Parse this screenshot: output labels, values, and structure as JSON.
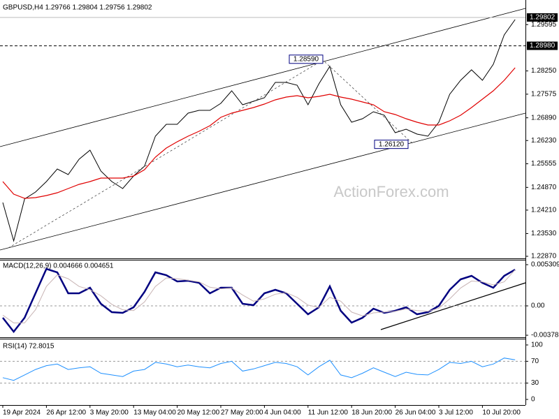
{
  "chart_data": [
    {
      "type": "line",
      "title": "GBPUSD,H4 1.29766 1.29804 1.29756 1.29802",
      "watermark": "ActionForex.com",
      "categories": [
        "19 Apr 2024",
        null,
        null,
        null,
        "26 Apr 12:00",
        null,
        null,
        null,
        "3 May 20:00",
        null,
        null,
        null,
        "13 May 04:00",
        null,
        null,
        null,
        "20 May 12:00",
        null,
        null,
        null,
        "27 May 20:00",
        null,
        null,
        null,
        "4 Jun 04:00",
        null,
        null,
        null,
        "11 Jun 12:00",
        null,
        null,
        null,
        "18 Jun 20:00",
        null,
        null,
        null,
        "26 Jun 04:00",
        null,
        null,
        null,
        "3 Jul 12:00",
        null,
        null,
        null,
        "10 Jul 20:00",
        null,
        null,
        null
      ],
      "ylim": [
        1.22809,
        1.30309
      ],
      "yticks": [
        1.29595,
        {
          "value": 1.2825,
          "label": "1.28250"
        },
        1.27575,
        {
          "value": 1.2689,
          "label": "1.26890"
        },
        {
          "value": 1.2623,
          "label": "1.26230"
        },
        1.25555,
        {
          "value": 1.2487,
          "label": "1.24870"
        },
        {
          "value": 1.2421,
          "label": "1.24210"
        },
        {
          "value": 1.2353,
          "label": "1.23530"
        },
        {
          "value": 1.2287,
          "label": "1.22870"
        }
      ],
      "hlines": [
        {
          "value": 1.2898,
          "label": "1.28980"
        }
      ],
      "last_price": 1.29802,
      "annotations": [
        {
          "value": 1.2859,
          "label": "1.28590"
        },
        {
          "value": 1.2612,
          "label": "1.26120"
        }
      ],
      "series": [
        {
          "color": "#000000",
          "values": [
            1.24431,
            1.23316,
            1.24532,
            1.24735,
            1.25039,
            1.25404,
            1.25241,
            1.25687,
            1.25951,
            1.25343,
            1.25039,
            1.24836,
            1.25201,
            1.25485,
            1.26356,
            1.26701,
            1.26701,
            1.27025,
            1.27106,
            1.27106,
            1.27309,
            1.27674,
            1.27268,
            1.2737,
            1.27471,
            1.27917,
            1.27917,
            1.27836,
            1.27268,
            1.27877,
            1.28383,
            1.27268,
            1.26762,
            1.26863,
            1.27066,
            1.26964,
            1.26458,
            1.26559,
            1.26417,
            1.26356,
            1.26762,
            1.27573,
            1.27978,
            1.28282,
            1.27978,
            1.28444,
            1.29295,
            1.29741
          ]
        },
        {
          "color": "#e00000",
          "values": [
            1.25039,
            1.24674,
            1.24552,
            1.24573,
            1.24633,
            1.24714,
            1.24836,
            1.24958,
            1.25039,
            1.2514,
            1.2514,
            1.2514,
            1.25201,
            1.25383,
            1.25748,
            1.26012,
            1.26194,
            1.26356,
            1.26498,
            1.2666,
            1.26904,
            1.27025,
            1.27106,
            1.27187,
            1.27289,
            1.2741,
            1.27491,
            1.27532,
            1.27471,
            1.27512,
            1.27573,
            1.27491,
            1.27431,
            1.2735,
            1.27268,
            1.27066,
            1.26985,
            1.26863,
            1.26762,
            1.26681,
            1.26681,
            1.26802,
            1.26964,
            1.27187,
            1.27431,
            1.27674,
            1.27978,
            1.28343
          ]
        }
      ]
    },
    {
      "type": "line",
      "title": "MACD(12,26,9) 0.004666 0.004651",
      "ylim": [
        -0.00405,
        0.00594
      ],
      "yticks": [
        0.005309,
        {
          "value": 0,
          "label": "0.00"
        },
        -0.003785
      ],
      "levels": [
        0
      ],
      "series": [
        {
          "color": "#000080",
          "values": [
            -0.00153,
            -0.00333,
            -0.00153,
            0.00162,
            0.00477,
            0.00432,
            0.00162,
            0.00162,
            0.00234,
            0.00027,
            -0.00081,
            -0.0009,
            -0.00018,
            0.0018,
            0.00432,
            0.00396,
            0.00315,
            0.00324,
            0.00297,
            0.00162,
            0.00234,
            0.00234,
            0.00027,
            9e-05,
            0.00162,
            0.00207,
            0.00162,
            0.00027,
            -0.00108,
            -0.00018,
            0.00252,
            -0.00063,
            -0.00216,
            -0.00153,
            -0.00036,
            -0.0009,
            -0.00063,
            -0.00018,
            -0.00108,
            -0.00081,
            0,
            0.00207,
            0.00342,
            0.00387,
            0.00297,
            0.00234,
            0.00387,
            0.00467
          ]
        },
        {
          "color": "#c8b4b4",
          "values": [
            -0.0012,
            -0.0022,
            -0.0022,
            -0.0005,
            0.0025,
            0.004,
            0.0035,
            0.0025,
            0.0021,
            0.0013,
            0.0002,
            -0.0005,
            -0.0006,
            0.0005,
            0.0025,
            0.0036,
            0.0035,
            0.0033,
            0.0031,
            0.0024,
            0.0022,
            0.0023,
            0.0014,
            0.0006,
            0.0009,
            0.0015,
            0.0017,
            0.0011,
            0.0001,
            -0.0002,
            0.0011,
            0.0006,
            -0.0008,
            -0.0013,
            -0.0009,
            -0.0008,
            -0.0007,
            -0.0004,
            -0.0006,
            -0.0007,
            -0.0003,
            0.0009,
            0.0023,
            0.0032,
            0.0031,
            0.0027,
            0.0031,
            0.00465
          ]
        }
      ]
    },
    {
      "type": "line",
      "title": "RSI(14) 72.8015",
      "ylim": [
        -10.3,
        111.5
      ],
      "yticks": [
        100,
        70,
        30,
        0
      ],
      "levels": [
        70,
        30
      ],
      "series": [
        {
          "color": "#1e90ff",
          "values": [
            40,
            35,
            45,
            55,
            62,
            65,
            55,
            58,
            60,
            48,
            45,
            42,
            52,
            55,
            68,
            65,
            60,
            63,
            60,
            58,
            66,
            70,
            52,
            56,
            62,
            68,
            66,
            60,
            45,
            60,
            72,
            45,
            40,
            48,
            58,
            50,
            42,
            50,
            46,
            45,
            55,
            68,
            66,
            70,
            60,
            65,
            76,
            72.8
          ]
        }
      ]
    }
  ]
}
